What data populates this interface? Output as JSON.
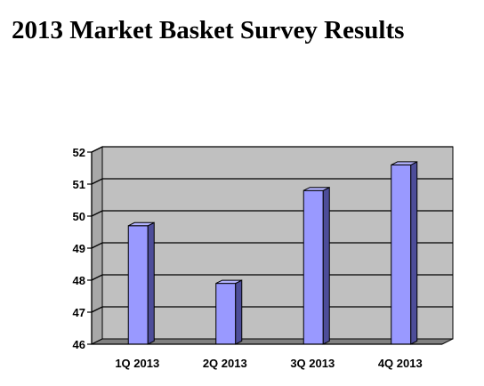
{
  "title": "2013 Market Basket Survey Results",
  "chart_data": {
    "type": "bar",
    "title": "",
    "xlabel": "",
    "ylabel": "",
    "categories": [
      "1Q 2013",
      "2Q 2013",
      "3Q 2013",
      "4Q 2013"
    ],
    "values": [
      49.7,
      47.9,
      50.8,
      51.6
    ],
    "ylim": [
      46,
      52
    ],
    "yticks": [
      "46",
      "47",
      "48",
      "49",
      "50",
      "51",
      "52"
    ],
    "grid": true,
    "legend": "none",
    "colors": {
      "bar_front": "#9999ff",
      "bar_side": "#4d4d99",
      "bar_top": "#b3b3ff",
      "plot_back": "#c0c0c0",
      "plot_floor": "#808080"
    }
  }
}
